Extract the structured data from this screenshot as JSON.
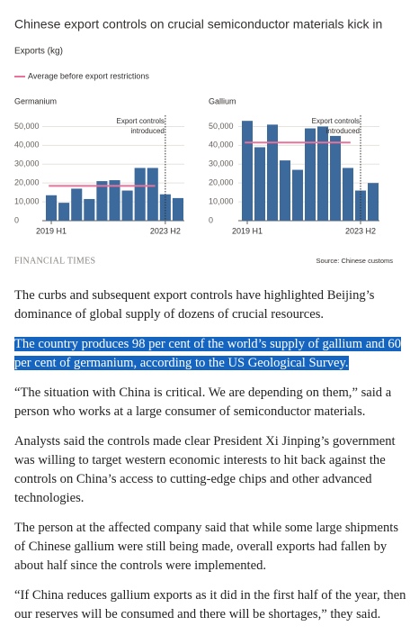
{
  "header": {
    "title": "Chinese export controls on crucial semiconductor materials kick in",
    "subtitle": "Exports (kg)",
    "legend": "Average before export restrictions",
    "legend_color": "#e8739a"
  },
  "chart_data": [
    {
      "type": "bar",
      "title": "Germanium",
      "color": "#3d6a9c",
      "categories": [
        "2019 H1",
        null,
        null,
        null,
        null,
        null,
        null,
        null,
        null,
        "2023 H2",
        null
      ],
      "values": [
        13500,
        9500,
        17000,
        11500,
        21000,
        21500,
        16000,
        28000,
        28000,
        14000,
        12000
      ],
      "average": 18500,
      "annotation": [
        "Export controls",
        "introduced"
      ],
      "ylim": [
        0,
        55000
      ],
      "yticks": [
        0,
        {
          "value": 10000,
          "label": "10,000"
        },
        {
          "value": 20000,
          "label": "20,000"
        },
        {
          "value": 30000,
          "label": "30,000"
        },
        {
          "value": 40000,
          "label": "40,000"
        },
        {
          "value": 50000,
          "label": "50,000"
        }
      ],
      "grid": true
    },
    {
      "type": "bar",
      "title": "Gallium",
      "color": "#3d6a9c",
      "categories": [
        "2019 H1",
        null,
        null,
        null,
        null,
        null,
        null,
        null,
        null,
        "2023 H2",
        null
      ],
      "values": [
        53000,
        39000,
        51000,
        32000,
        27000,
        49000,
        50000,
        45000,
        28000,
        16000,
        20000
      ],
      "average": 41500,
      "annotation": [
        "Export controls",
        "introduced"
      ],
      "ylim": [
        0,
        55000
      ],
      "yticks": [
        0,
        {
          "value": 10000,
          "label": "10,000"
        },
        {
          "value": 20000,
          "label": "20,000"
        },
        {
          "value": 30000,
          "label": "30,000"
        },
        {
          "value": 40000,
          "label": "40,000"
        },
        {
          "value": 50000,
          "label": "50,000"
        }
      ],
      "grid": true
    }
  ],
  "footer": {
    "brand": "FINANCIAL TIMES",
    "source": "Source: Chinese customs"
  },
  "article": {
    "paragraphs": [
      "The curbs and subsequent export controls have highlighted Beijing’s dominance of global supply of dozens of crucial resources.",
      "The country produces 98 per cent of the world’s supply of gallium and 60 per cent of germanium, according to the US Geological Survey.",
      "“The situation with China is critical. We are depending on them,” said a person who works at a large consumer of semiconductor materials.",
      "Analysts said the controls made clear President Xi Jinping’s government was willing to target western economic interests to hit back against the controls on China’s access to cutting-edge chips and other advanced technologies.",
      "The person at the affected company said that while some large shipments of Chinese gallium were still being made, overall exports had fallen by about half since the controls were implemented.",
      "“If China reduces gallium exports as it did in the first half of the year, then our reserves will be consumed and there will be shortages,” they said."
    ]
  }
}
